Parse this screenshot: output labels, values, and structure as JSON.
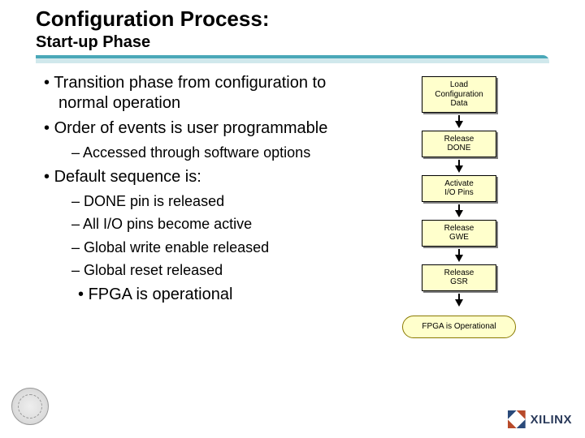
{
  "header": {
    "title": "Configuration Process:",
    "subtitle": "Start-up Phase",
    "underline_top_color": "#4aa8b8",
    "underline_bottom_color": "#d0e8ec"
  },
  "bullets": {
    "b1_1": "Transition phase from configuration to normal operation",
    "b1_2": "Order of events is user programmable",
    "b2_1": "Accessed through software options",
    "b1_3": "Default sequence is:",
    "b2_2": "DONE pin is released",
    "b2_3": "All I/O pins become active",
    "b2_4": "Global write enable released",
    "b2_5": "Global reset released",
    "b1_4": "FPGA is operational"
  },
  "flowchart": {
    "type": "flowchart",
    "node_bg": "#ffffcc",
    "node_border": "#000000",
    "node_shadow": "#808080",
    "node_fontsize": 10,
    "arrow_color": "#000000",
    "end_bg": "#ffffcc",
    "end_border": "#8a7a00",
    "nodes": {
      "n1": "Load\nConfiguration\nData",
      "n2": "Release\nDONE",
      "n3": "Activate\nI/O Pins",
      "n4": "Release\nGWE",
      "n5": "Release\nGSR",
      "end": "FPGA is Operational"
    }
  },
  "footer": {
    "brand": "XILINX"
  },
  "colors": {
    "page_bg": "#ffffff",
    "text": "#000000"
  }
}
